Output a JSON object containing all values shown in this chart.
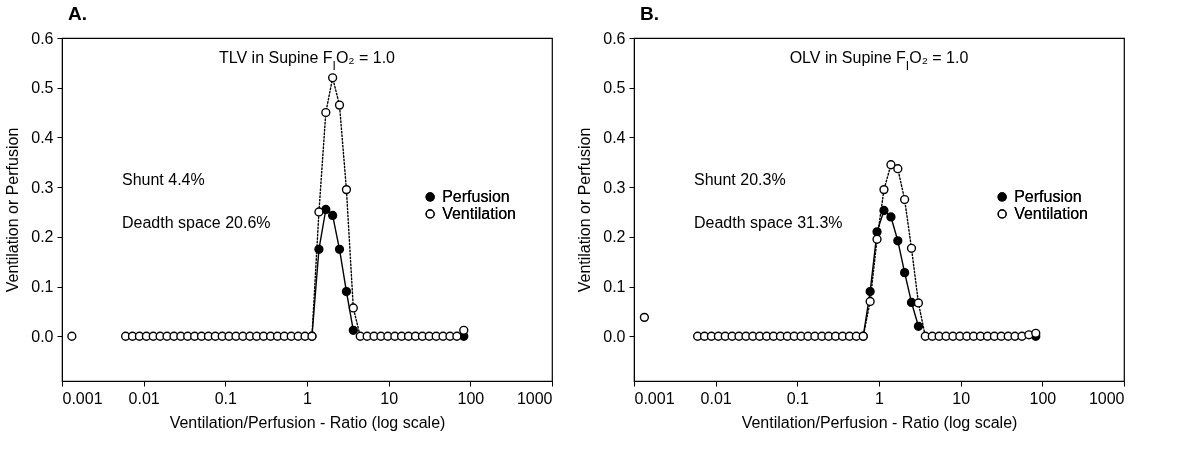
{
  "chart_data": [
    {
      "type": "line",
      "title": "A.",
      "xlabel": "Ventilation/Perfusion - Ratio (log scale)",
      "ylabel": "Ventilation or Perfusion",
      "annotations": [
        "TLV in Supine F$_{I}$O₂ = 1.0",
        "Shunt 4.4%",
        "Deadth space 20.6%"
      ],
      "log": "x",
      "xlim": [
        0.001,
        1000
      ],
      "xticks": [
        0.001,
        0.01,
        0.1,
        1,
        10,
        100,
        1000
      ],
      "ylim": [
        -0.09,
        0.6
      ],
      "yticks": [
        {
          "value": 0,
          "label": "0.0"
        },
        0.1,
        0.2,
        0.3,
        0.4,
        0.5,
        0.6
      ],
      "grid": false,
      "legend": "right",
      "marker": "circle",
      "x": [
        0.00601,
        0.0073,
        0.00887,
        0.0108,
        0.0131,
        0.0159,
        0.0193,
        0.0235,
        0.0285,
        0.0346,
        0.0421,
        0.0511,
        0.0621,
        0.0754,
        0.0916,
        0.111,
        0.135,
        0.164,
        0.2,
        0.242,
        0.294,
        0.358,
        0.435,
        0.528,
        0.641,
        0.779,
        0.946,
        1.15,
        1.4,
        1.7,
        2.06,
        2.5,
        3.04,
        3.69,
        4.49,
        5.45,
        6.62,
        8.04,
        9.77,
        11.9,
        14.4,
        17.5,
        21.3,
        25.9,
        31.4,
        38.2,
        46.3,
        56.3,
        68.4,
        83.1
      ],
      "series": [
        {
          "name": "Perfusion",
          "color": "#000000",
          "line_style": "solid",
          "values": [
            null,
            null,
            null,
            null,
            null,
            null,
            null,
            null,
            null,
            null,
            null,
            null,
            null,
            null,
            null,
            null,
            null,
            null,
            null,
            null,
            null,
            null,
            null,
            null,
            null,
            null,
            null,
            0,
            0.175,
            0.255,
            0.243,
            0.175,
            0.09,
            0.012,
            null,
            null,
            null,
            null,
            null,
            null,
            null,
            null,
            null,
            null,
            null,
            null,
            null,
            null,
            null,
            0
          ]
        },
        {
          "name": "Ventilation",
          "color": "#000000",
          "line_style": "dotted",
          "values": [
            0,
            0,
            0,
            0,
            0,
            0,
            0,
            0,
            0,
            0,
            0,
            0,
            0,
            0,
            0,
            0,
            0,
            0,
            0,
            0,
            0,
            0,
            0,
            0,
            0,
            0,
            0,
            0,
            0.25,
            0.45,
            0.52,
            0.465,
            0.295,
            0.057,
            0,
            0,
            0,
            0,
            0,
            0,
            0,
            0,
            0,
            0,
            0,
            0,
            0,
            0,
            0,
            0.012
          ]
        },
        {
          "type": "scatter",
          "color": "#000000",
          "x": [
            0.00132
          ],
          "values": [
            0
          ]
        }
      ]
    },
    {
      "type": "line",
      "title": "B.",
      "xlabel": "Ventilation/Perfusion - Ratio (log scale)",
      "ylabel": "Ventilation or Perfusion",
      "annotations": [
        "OLV in Supine F$_{I}$O₂ = 1.0",
        "Shunt 20.3%",
        "Deadth space 31.3%"
      ],
      "log": "x",
      "xlim": [
        0.001,
        1000
      ],
      "xticks": [
        0.001,
        0.01,
        0.1,
        1,
        10,
        100,
        1000
      ],
      "ylim": [
        -0.09,
        0.6
      ],
      "yticks": [
        {
          "value": 0,
          "label": "0.0"
        },
        0.1,
        0.2,
        0.3,
        0.4,
        0.5,
        0.6
      ],
      "grid": false,
      "legend": "right",
      "marker": "circle",
      "x": [
        0.00601,
        0.0073,
        0.00887,
        0.0108,
        0.0131,
        0.0159,
        0.0193,
        0.0235,
        0.0285,
        0.0346,
        0.0421,
        0.0511,
        0.0621,
        0.0754,
        0.0916,
        0.111,
        0.135,
        0.164,
        0.2,
        0.242,
        0.294,
        0.358,
        0.435,
        0.528,
        0.641,
        0.779,
        0.946,
        1.15,
        1.4,
        1.7,
        2.06,
        2.5,
        3.04,
        3.69,
        4.49,
        5.45,
        6.62,
        8.04,
        9.77,
        11.9,
        14.4,
        17.5,
        21.3,
        25.9,
        31.4,
        38.2,
        46.3,
        56.3,
        68.4,
        83.1
      ],
      "series": [
        {
          "name": "Perfusion",
          "color": "#000000",
          "line_style": "solid",
          "values": [
            null,
            null,
            null,
            null,
            null,
            null,
            null,
            null,
            null,
            null,
            null,
            null,
            null,
            null,
            null,
            null,
            null,
            null,
            null,
            null,
            null,
            null,
            null,
            null,
            0,
            0.09,
            0.21,
            0.253,
            0.24,
            0.192,
            0.128,
            0.068,
            0.02,
            null,
            null,
            null,
            null,
            null,
            null,
            null,
            null,
            null,
            null,
            null,
            null,
            null,
            null,
            null,
            null,
            0
          ]
        },
        {
          "name": "Ventilation",
          "color": "#000000",
          "line_style": "dotted",
          "values": [
            0,
            0,
            0,
            0,
            0,
            0,
            0,
            0,
            0,
            0,
            0,
            0,
            0,
            0,
            0,
            0,
            0,
            0,
            0,
            0,
            0,
            0,
            0,
            0,
            0,
            0.07,
            0.195,
            0.295,
            0.345,
            0.337,
            0.275,
            0.177,
            0.067,
            0,
            0,
            0,
            0,
            0,
            0,
            0,
            0,
            0,
            0,
            0,
            0,
            0,
            0,
            0,
            0.003,
            0.006
          ]
        },
        {
          "type": "scatter",
          "color": "#000000",
          "x": [
            0.00134
          ],
          "values": [
            0.038
          ]
        }
      ]
    }
  ]
}
